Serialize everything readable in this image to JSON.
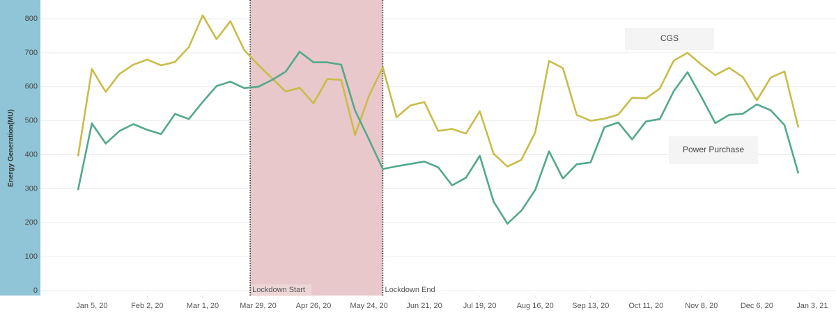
{
  "chart_data": {
    "type": "line",
    "y_label": "Energy Generation(MU)",
    "x": [
      "2019-12-29",
      "2020-01-05",
      "2020-01-12",
      "2020-01-19",
      "2020-01-26",
      "2020-02-02",
      "2020-02-09",
      "2020-02-16",
      "2020-02-23",
      "2020-03-01",
      "2020-03-08",
      "2020-03-15",
      "2020-03-22",
      "2020-03-29",
      "2020-04-05",
      "2020-04-12",
      "2020-04-19",
      "2020-04-26",
      "2020-05-03",
      "2020-05-10",
      "2020-05-17",
      "2020-05-24",
      "2020-05-31",
      "2020-06-07",
      "2020-06-14",
      "2020-06-21",
      "2020-06-28",
      "2020-07-05",
      "2020-07-12",
      "2020-07-19",
      "2020-07-26",
      "2020-08-02",
      "2020-08-09",
      "2020-08-16",
      "2020-08-23",
      "2020-08-30",
      "2020-09-06",
      "2020-09-13",
      "2020-09-20",
      "2020-09-27",
      "2020-10-04",
      "2020-10-11",
      "2020-10-18",
      "2020-10-25",
      "2020-11-01",
      "2020-11-08",
      "2020-11-15",
      "2020-11-22",
      "2020-11-29",
      "2020-12-06",
      "2020-12-13",
      "2020-12-20",
      "2020-12-27"
    ],
    "series": [
      {
        "name": "CGS",
        "color": "#c9bc48",
        "values": [
          395,
          652,
          585,
          638,
          665,
          680,
          663,
          673,
          717,
          810,
          740,
          793,
          708,
          665,
          625,
          586,
          597,
          551,
          623,
          620,
          458,
          573,
          657,
          510,
          545,
          555,
          470,
          476,
          462,
          528,
          403,
          365,
          385,
          465,
          676,
          655,
          517,
          500,
          506,
          518,
          568,
          566,
          595,
          677,
          700,
          665,
          634,
          656,
          628,
          560,
          627,
          645,
          480
        ]
      },
      {
        "name": "Power Purchase",
        "color": "#52a88b",
        "values": [
          296,
          492,
          433,
          470,
          490,
          473,
          461,
          520,
          505,
          555,
          602,
          615,
          596,
          600,
          620,
          645,
          703,
          672,
          672,
          665,
          530,
          445,
          358,
          366,
          373,
          380,
          363,
          310,
          332,
          397,
          262,
          197,
          235,
          296,
          410,
          330,
          372,
          377,
          481,
          495,
          445,
          498,
          505,
          587,
          643,
          570,
          493,
          517,
          521,
          548,
          531,
          487,
          345
        ]
      }
    ],
    "xlim": [
      "2019-12-10",
      "2021-01-15"
    ],
    "xticks": [
      {
        "value": "2020-01-05",
        "label": "Jan 5, 20"
      },
      {
        "value": "2020-02-02",
        "label": "Feb 2, 20"
      },
      {
        "value": "2020-03-01",
        "label": "Mar 1, 20"
      },
      {
        "value": "2020-03-29",
        "label": "Mar 29, 20"
      },
      {
        "value": "2020-04-26",
        "label": "Apr 26, 20"
      },
      {
        "value": "2020-05-24",
        "label": "May 24, 20"
      },
      {
        "value": "2020-06-21",
        "label": "Jun 21, 20"
      },
      {
        "value": "2020-07-19",
        "label": "Jul 19, 20"
      },
      {
        "value": "2020-08-16",
        "label": "Aug 16, 20"
      },
      {
        "value": "2020-09-13",
        "label": "Sep 13, 20"
      },
      {
        "value": "2020-10-11",
        "label": "Oct 11, 20"
      },
      {
        "value": "2020-11-08",
        "label": "Nov 8, 20"
      },
      {
        "value": "2020-12-06",
        "label": "Dec 6, 20"
      },
      {
        "value": "2021-01-03",
        "label": "Jan 3, 21"
      }
    ],
    "ylim": [
      0,
      800
    ],
    "yticks": [
      0,
      100,
      200,
      300,
      400,
      500,
      600,
      700,
      800
    ],
    "grid": true,
    "annotations": [
      {
        "label": "Lockdown Start",
        "x": "2020-03-25"
      },
      {
        "label": "Lockdown End",
        "x": "2020-05-31"
      }
    ],
    "shade_color": "#e8c8ca"
  }
}
